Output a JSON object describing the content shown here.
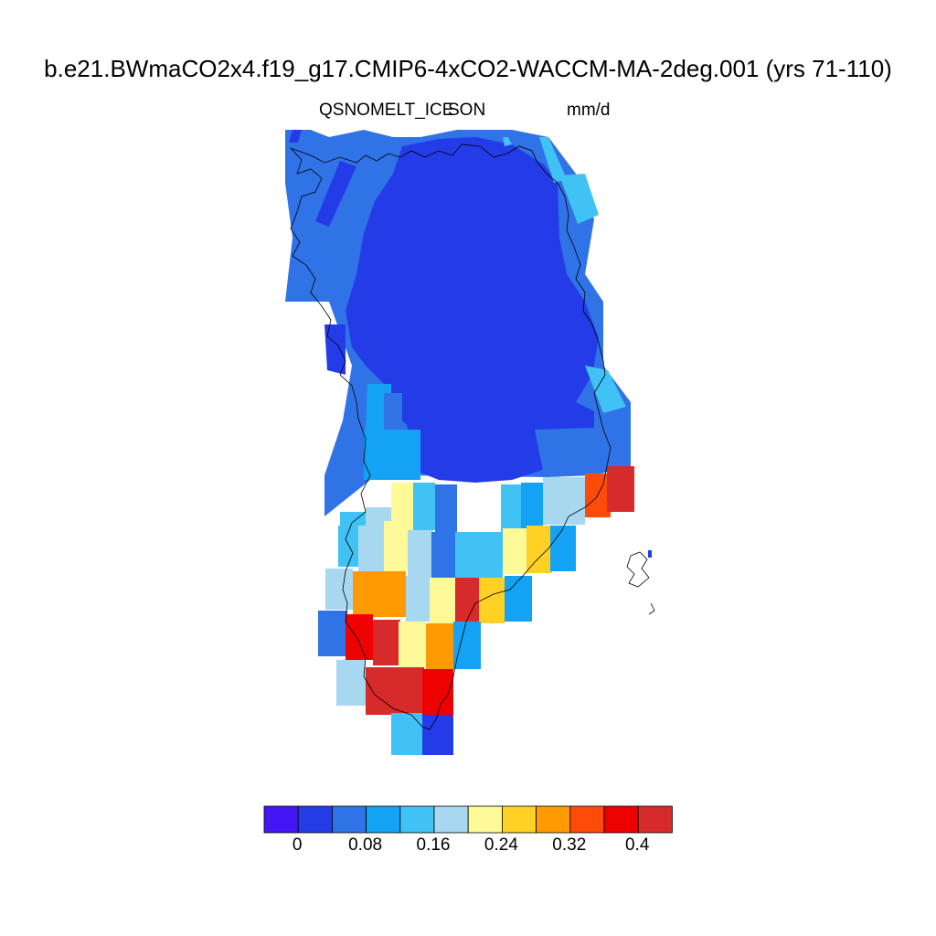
{
  "header": {
    "title": "b.e21.BWmaCO2x4.f19_g17.CMIP6-4xCO2-WACCM-MA-2deg.001 (yrs 71-110)",
    "left_label": "QSNOMELT_ICE",
    "center_label": "SON",
    "right_label": "mm/d"
  },
  "colorbar": {
    "colors": [
      "#4316f5",
      "#243ce8",
      "#2f73e6",
      "#14a2f5",
      "#40c2f5",
      "#a8d8f0",
      "#fffa98",
      "#ffd125",
      "#ff9a04",
      "#ff4b0a",
      "#ee0101",
      "#d72a2a"
    ],
    "tick_labels": [
      "0",
      "0.08",
      "0.16",
      "0.24",
      "0.32",
      "0.4"
    ]
  },
  "map": {
    "region": "Greenland",
    "variable_units": "mm/d",
    "field_levels": {
      "north_interior": 0.02,
      "north_coast_west": 0.05,
      "north_coast_east": 0.09,
      "east_margin": 0.12,
      "southwest_margin": 0.21,
      "southeast_edge": 0.42,
      "south_tip": 0.38
    }
  }
}
